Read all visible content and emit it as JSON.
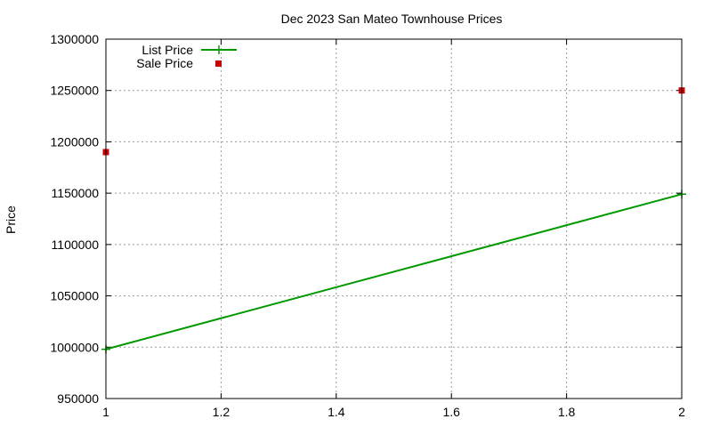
{
  "chart_data": {
    "type": "line",
    "title": "Dec 2023 San Mateo Townhouse Prices",
    "xlabel": "",
    "ylabel": "Price",
    "xlim": [
      1,
      2
    ],
    "ylim": [
      950000,
      1300000
    ],
    "x_ticks": [
      "1",
      "1.2",
      "1.4",
      "1.6",
      "1.8",
      "2"
    ],
    "y_ticks": [
      "950000",
      "1000000",
      "1050000",
      "1100000",
      "1150000",
      "1200000",
      "1250000",
      "1300000"
    ],
    "grid": true,
    "legend_position": "top-left",
    "series": [
      {
        "name": "List Price",
        "style": "linespoints",
        "color": "#009900",
        "marker": "plus",
        "x": [
          1,
          2
        ],
        "y": [
          998000,
          1149000
        ]
      },
      {
        "name": "Sale Price",
        "style": "points",
        "color": "#cc0000",
        "marker": "square",
        "x": [
          1,
          2
        ],
        "y": [
          1190000,
          1250000
        ]
      }
    ]
  }
}
